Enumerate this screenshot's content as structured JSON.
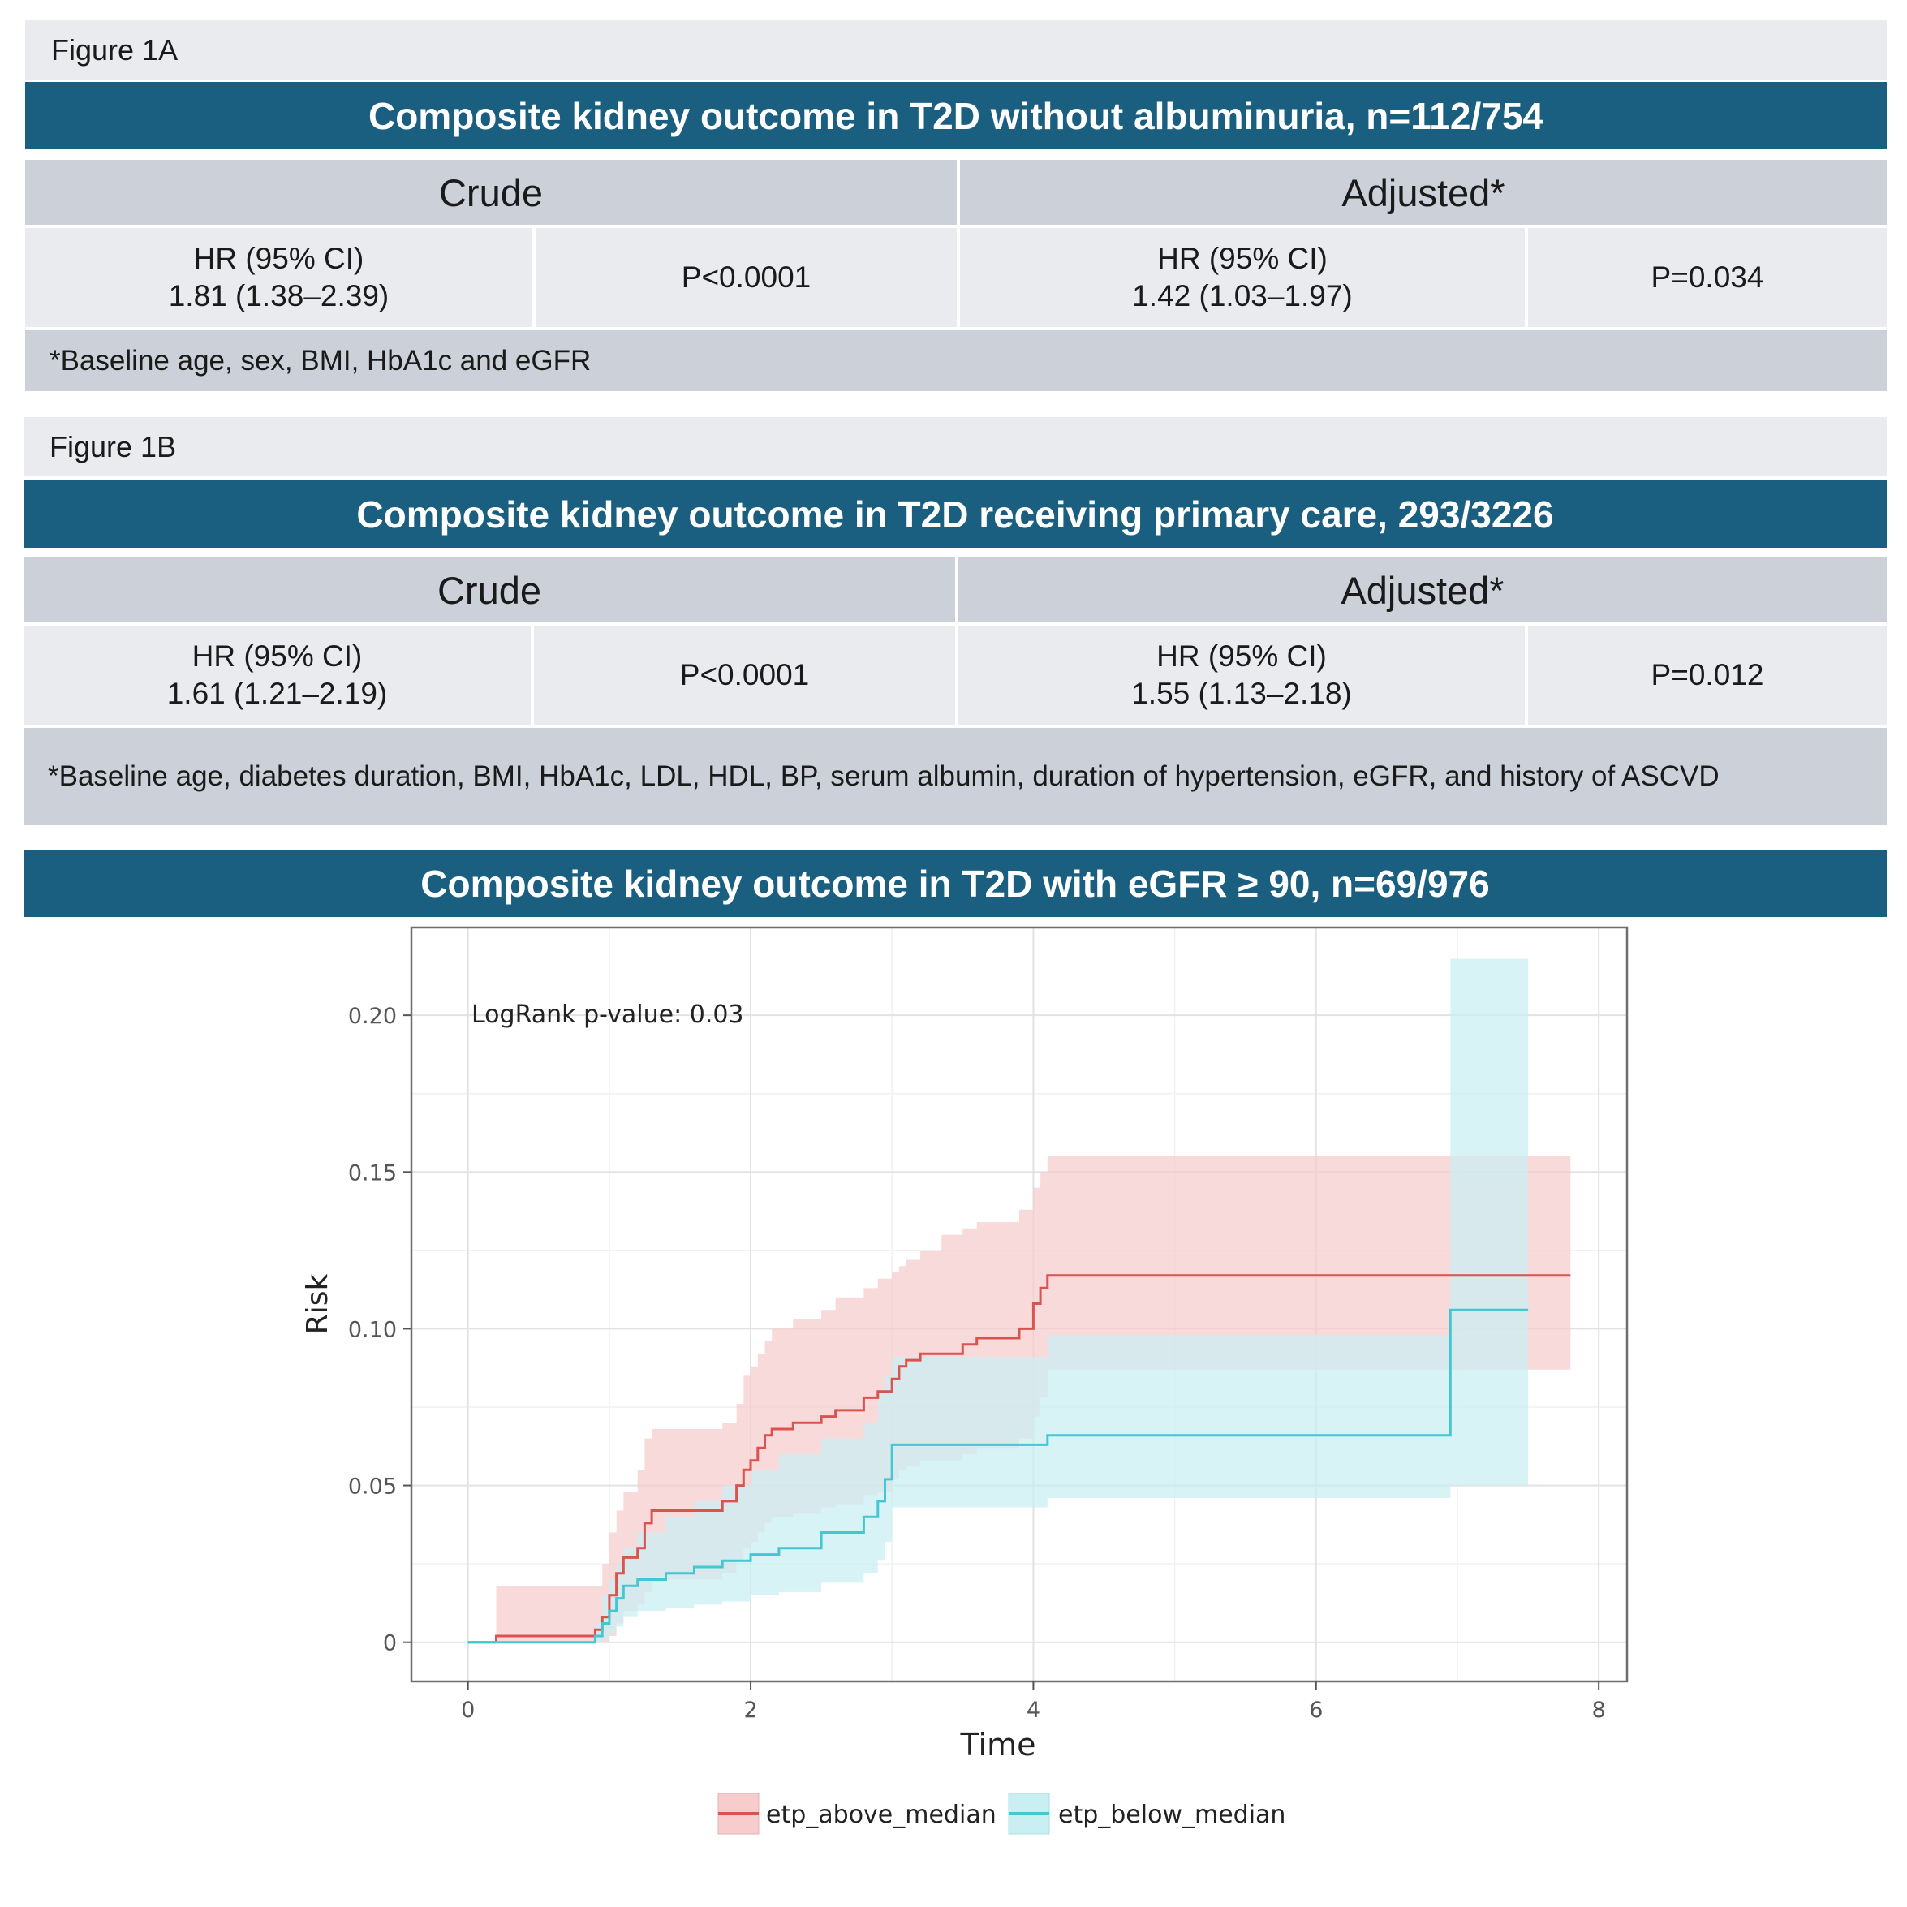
{
  "figure_1a": {
    "label": "Figure 1A",
    "title": "Composite kidney outcome in T2D without albuminuria, n=112/754",
    "crude_label": "Crude",
    "adjusted_label": "Adjusted*",
    "crude_hr_label": "HR (95% CI)",
    "crude_hr_value": "1.81 (1.38–2.39)",
    "crude_p": "P<0.0001",
    "adjusted_hr_label": "HR (95% CI)",
    "adjusted_hr_value": "1.42 (1.03–1.97)",
    "adjusted_p": "P=0.034",
    "footnote": "*Baseline age, sex, BMI, HbA1c and eGFR"
  },
  "figure_1b": {
    "label": "Figure 1B",
    "title": "Composite kidney outcome in T2D receiving primary care, 293/3226",
    "crude_label": "Crude",
    "adjusted_label": "Adjusted*",
    "crude_hr_label": "HR (95% CI)",
    "crude_hr_value": "1.61 (1.21–2.19)",
    "crude_p": "P<0.0001",
    "adjusted_hr_label": "HR (95% CI)",
    "adjusted_hr_value": "1.55 (1.13–2.18)",
    "adjusted_p": "P=0.012",
    "footnote": "*Baseline age, diabetes duration, BMI, HbA1c, LDL, HDL, BP, serum albumin, duration of hypertension, eGFR, and history of ASCVD"
  },
  "chart_banner": "Composite kidney outcome in T2D with eGFR ≥ 90, n=69/976",
  "colors": {
    "banner": "#1a5e80",
    "above": "#d9534f",
    "above_band": "#f6cccc",
    "below": "#45c6d3",
    "below_band": "#c9eff2"
  },
  "chart_data": {
    "type": "line",
    "title": "",
    "xlabel": "Time",
    "ylabel": "Risk",
    "xlim": [
      -0.4,
      8.2
    ],
    "ylim": [
      -0.0125,
      0.228
    ],
    "x_ticks": [
      0,
      2,
      4,
      6,
      8
    ],
    "x_tick_labels": [
      "0",
      "2",
      "4",
      "6",
      "8"
    ],
    "y_ticks": [
      0,
      0.05,
      0.1,
      0.15,
      0.2
    ],
    "y_tick_labels": [
      "0",
      "0.05",
      "0.10",
      "0.15",
      "0.20"
    ],
    "grid": true,
    "annotation": "LogRank p-value: 0.03",
    "legend_position": "bottom",
    "series": [
      {
        "name": "etp_above_median",
        "step_x": [
          0,
          0.2,
          0.9,
          0.95,
          1.0,
          1.05,
          1.1,
          1.2,
          1.25,
          1.3,
          1.8,
          1.9,
          1.95,
          2.0,
          2.05,
          2.1,
          2.15,
          2.3,
          2.5,
          2.6,
          2.7,
          2.8,
          2.9,
          3.0,
          3.05,
          3.1,
          3.2,
          3.35,
          3.5,
          3.6,
          3.8,
          3.9,
          4.0,
          4.05,
          4.1,
          7.8
        ],
        "step_y": [
          0,
          0.002,
          0.004,
          0.008,
          0.015,
          0.022,
          0.027,
          0.03,
          0.038,
          0.042,
          0.045,
          0.05,
          0.055,
          0.058,
          0.062,
          0.066,
          0.068,
          0.07,
          0.072,
          0.074,
          0.074,
          0.078,
          0.08,
          0.084,
          0.088,
          0.09,
          0.092,
          0.092,
          0.095,
          0.097,
          0.097,
          0.1,
          0.108,
          0.113,
          0.117,
          0.117
        ],
        "ci_lower": [
          0,
          0.0,
          0.0,
          0.0,
          0.002,
          0.006,
          0.01,
          0.012,
          0.016,
          0.02,
          0.022,
          0.026,
          0.03,
          0.032,
          0.035,
          0.038,
          0.04,
          0.041,
          0.043,
          0.044,
          0.044,
          0.047,
          0.048,
          0.052,
          0.055,
          0.056,
          0.058,
          0.058,
          0.06,
          0.062,
          0.062,
          0.065,
          0.072,
          0.078,
          0.087,
          0.087
        ],
        "ci_upper": [
          0,
          0.018,
          0.018,
          0.025,
          0.035,
          0.042,
          0.048,
          0.055,
          0.065,
          0.068,
          0.07,
          0.076,
          0.085,
          0.088,
          0.092,
          0.096,
          0.1,
          0.103,
          0.106,
          0.11,
          0.11,
          0.113,
          0.116,
          0.118,
          0.12,
          0.122,
          0.125,
          0.13,
          0.132,
          0.134,
          0.134,
          0.138,
          0.145,
          0.15,
          0.155,
          0.155
        ]
      },
      {
        "name": "etp_below_median",
        "step_x": [
          0,
          0.9,
          0.95,
          1.0,
          1.05,
          1.1,
          1.2,
          1.4,
          1.6,
          1.8,
          2.0,
          2.2,
          2.5,
          2.8,
          2.9,
          2.95,
          3.0,
          3.05,
          4.1,
          6.95,
          7.5
        ],
        "step_y": [
          0,
          0.002,
          0.006,
          0.01,
          0.014,
          0.018,
          0.02,
          0.022,
          0.024,
          0.026,
          0.028,
          0.03,
          0.035,
          0.04,
          0.045,
          0.052,
          0.063,
          0.063,
          0.066,
          0.106,
          0.106
        ],
        "ci_lower": [
          0,
          0.0,
          0.001,
          0.003,
          0.005,
          0.008,
          0.01,
          0.011,
          0.012,
          0.013,
          0.015,
          0.016,
          0.019,
          0.022,
          0.026,
          0.032,
          0.043,
          0.043,
          0.046,
          0.05,
          0.05
        ],
        "ci_upper": [
          0,
          0.006,
          0.015,
          0.02,
          0.025,
          0.03,
          0.035,
          0.04,
          0.045,
          0.05,
          0.055,
          0.06,
          0.065,
          0.07,
          0.08,
          0.085,
          0.091,
          0.091,
          0.098,
          0.218,
          0.218
        ]
      }
    ]
  }
}
